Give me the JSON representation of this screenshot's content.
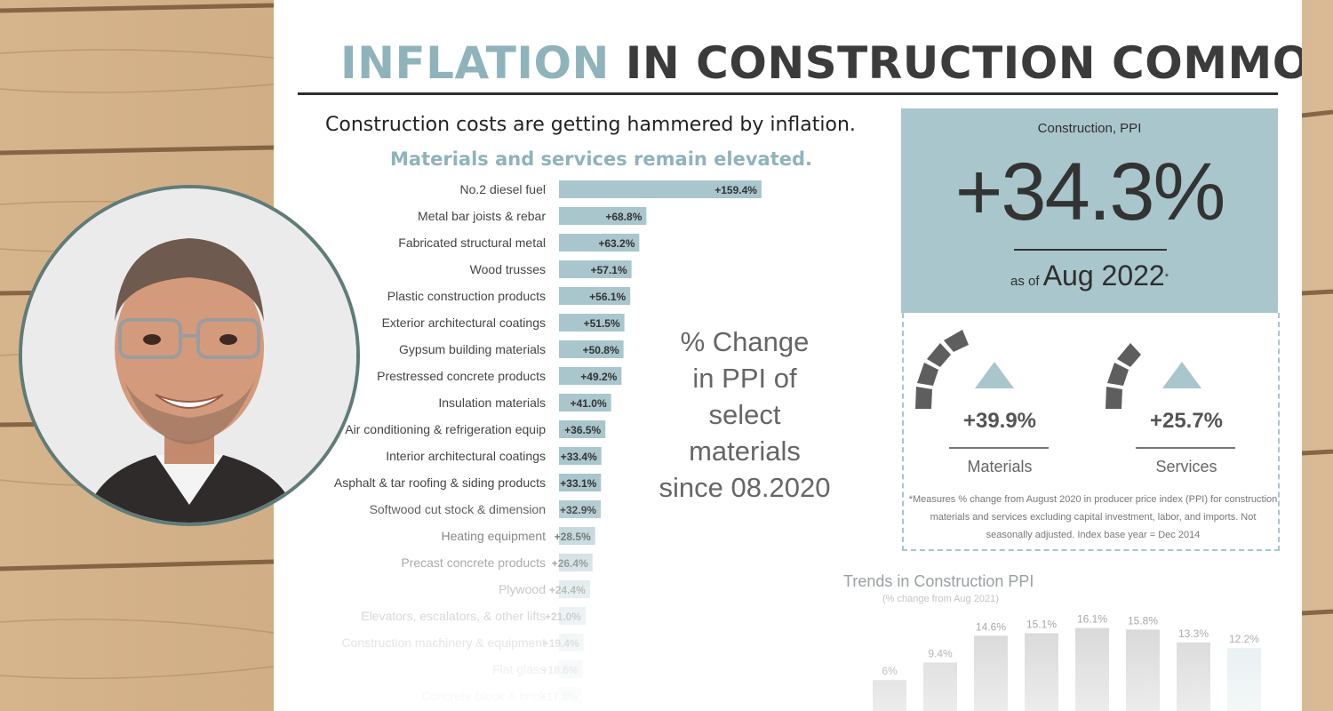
{
  "header": {
    "title_accent": "INFLATION",
    "title_rest": "IN CONSTRUCTION COMMODITIES",
    "subtitle": "Construction costs are getting hammered by inflation.",
    "subtitle2": "Materials and services remain elevated."
  },
  "side_label": [
    "% Change",
    "in PPI of",
    "select",
    "materials",
    "since 08.2020"
  ],
  "ppi": {
    "caption": "Construction, PPI",
    "value": "+34.3%",
    "asof_prefix": "as of",
    "asof_date": "Aug 2022",
    "asof_mark": "*"
  },
  "metrics": {
    "materials": {
      "value": "+39.9%",
      "label": "Materials"
    },
    "services": {
      "value": "+25.7%",
      "label": "Services"
    }
  },
  "footnote": "*Measures % change from August 2020 in producer price index (PPI) for construction materials and services excluding capital investment, labor, and imports. Not seasonally adjusted. Index base year = Dec 2014",
  "trend": {
    "title": "Trends in Construction PPI",
    "subtitle": "(% change from Aug 2021)"
  },
  "colors": {
    "accent": "#8fb3bb",
    "bar": "#a9c6cc",
    "dark": "#3b3b3b",
    "gauge": "#5e5e5e"
  },
  "chart_data": [
    {
      "type": "bar",
      "orientation": "horizontal",
      "categories": [
        "No.2 diesel fuel",
        "Metal bar joists & rebar",
        "Fabricated structural metal",
        "Wood trusses",
        "Plastic construction products",
        "Exterior architectural coatings",
        "Gypsum building materials",
        "Prestressed concrete products",
        "Insulation materials",
        "Air conditioning & refrigeration equip",
        "Interior architectural coatings",
        "Asphalt & tar roofing & siding products",
        "Softwood cut stock & dimension",
        "Heating equipment",
        "Precast concrete products",
        "Plywood",
        "Elevators, escalators, & other lifts",
        "Construction machinery & equipment",
        "Flat glass",
        "Concrete block & brick"
      ],
      "values": [
        159.4,
        68.8,
        63.2,
        57.1,
        56.1,
        51.5,
        50.8,
        49.2,
        41.0,
        36.5,
        33.4,
        33.1,
        32.9,
        28.5,
        26.4,
        24.4,
        21.0,
        19.4,
        18.6,
        17.8
      ],
      "labels": [
        "+159.4%",
        "+68.8%",
        "+63.2%",
        "+57.1%",
        "+56.1%",
        "+51.5%",
        "+50.8%",
        "+49.2%",
        "+41.0%",
        "+36.5%",
        "+33.4%",
        "+33.1%",
        "+32.9%",
        "+28.5%",
        "+26.4%",
        "+24.4%",
        "+21.0%",
        "+19.4%",
        "+18.6%",
        "+17.8%"
      ],
      "unit": "%"
    },
    {
      "type": "bar",
      "title": "Trends in Construction PPI",
      "subtitle": "(% change from Aug 2021)",
      "values": [
        6,
        9.4,
        14.6,
        15.1,
        16.1,
        15.8,
        13.3,
        12.2
      ],
      "labels": [
        "6%",
        "9.4%",
        "14.6%",
        "15.1%",
        "16.1%",
        "15.8%",
        "13.3%",
        "12.2%"
      ],
      "unit": "%"
    }
  ]
}
